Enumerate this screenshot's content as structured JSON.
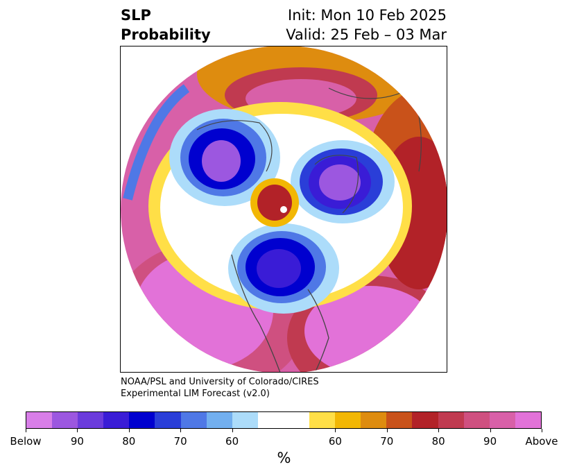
{
  "title": {
    "left_line1": "SLP",
    "left_line2": "Probability",
    "init": "Init: Mon 10 Feb 2025",
    "valid": "Valid: 25 Feb – 03 Mar"
  },
  "credit": {
    "line1": "NOAA/PSL and University of Colorado/CIRES",
    "line2": "Experimental LIM Forecast (v2.0)"
  },
  "map": {
    "projection": "north-polar-stereographic",
    "regions": [
      {
        "name": "Below-normal center over Siberia / Arctic",
        "category": "Below"
      },
      {
        "name": "Below-normal center over Greenland / Baffin",
        "category": "Below"
      },
      {
        "name": "Below-normal center over central Canada",
        "category": "Below"
      },
      {
        "name": "Above-normal over North Pacific",
        "category": "Above"
      },
      {
        "name": "Above-normal over North Atlantic / Europe",
        "category": "Above"
      },
      {
        "name": "Above-normal over Arctic Ocean near pole",
        "category": "Above"
      }
    ]
  },
  "colorbar": {
    "colors": [
      "#d87ee8",
      "#9c57e0",
      "#6b3bdc",
      "#3a1cd6",
      "#0000cf",
      "#2a3ed8",
      "#4f78e6",
      "#72afef",
      "#acdcfa",
      "#ffffff",
      "#ffffff",
      "#ffdf47",
      "#f2b704",
      "#de8c0f",
      "#c9521a",
      "#b22228",
      "#c03a50",
      "#cf5080",
      "#d860a8",
      "#e272d8"
    ],
    "tick_labels": [
      "Below",
      "90",
      "80",
      "70",
      "60",
      "60",
      "70",
      "80",
      "90",
      "Above"
    ],
    "unit": "%"
  }
}
